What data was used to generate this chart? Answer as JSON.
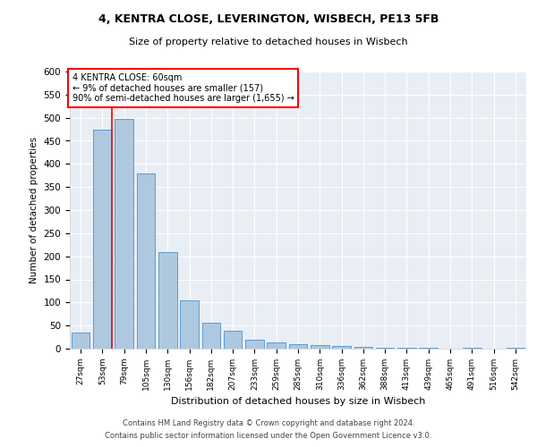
{
  "title1": "4, KENTRA CLOSE, LEVERINGTON, WISBECH, PE13 5FB",
  "title2": "Size of property relative to detached houses in Wisbech",
  "xlabel": "Distribution of detached houses by size in Wisbech",
  "ylabel": "Number of detached properties",
  "categories": [
    "27sqm",
    "53sqm",
    "79sqm",
    "105sqm",
    "130sqm",
    "156sqm",
    "182sqm",
    "207sqm",
    "233sqm",
    "259sqm",
    "285sqm",
    "310sqm",
    "336sqm",
    "362sqm",
    "388sqm",
    "413sqm",
    "439sqm",
    "465sqm",
    "491sqm",
    "516sqm",
    "542sqm"
  ],
  "values": [
    35,
    475,
    498,
    380,
    210,
    105,
    57,
    38,
    20,
    13,
    10,
    7,
    5,
    3,
    2,
    1,
    1,
    0,
    1,
    0,
    1
  ],
  "bar_color": "#aec8e0",
  "bar_edge_color": "#5b9bd5",
  "annotation_title": "4 KENTRA CLOSE: 60sqm",
  "annotation_line1": "← 9% of detached houses are smaller (157)",
  "annotation_line2": "90% of semi-detached houses are larger (1,655) →",
  "ylim": [
    0,
    600
  ],
  "yticks": [
    0,
    50,
    100,
    150,
    200,
    250,
    300,
    350,
    400,
    450,
    500,
    550,
    600
  ],
  "footer1": "Contains HM Land Registry data © Crown copyright and database right 2024.",
  "footer2": "Contains public sector information licensed under the Open Government Licence v3.0.",
  "bg_color": "#e8eef4",
  "fig_bg": "#ffffff"
}
